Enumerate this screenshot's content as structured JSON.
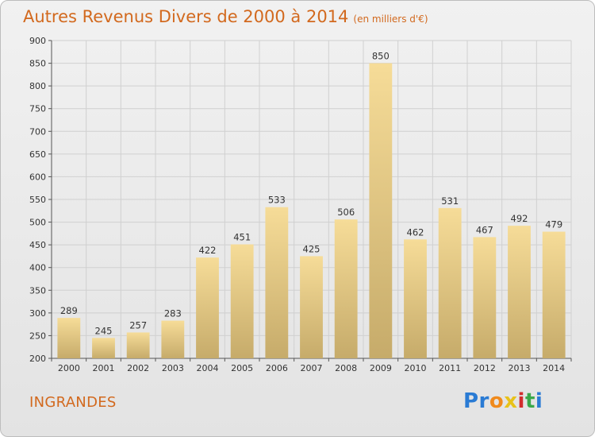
{
  "chart_data": {
    "type": "bar",
    "title": "Autres Revenus Divers de 2000 à 2014",
    "subtitle": "(en milliers d'€)",
    "categories": [
      "2000",
      "2001",
      "2002",
      "2003",
      "2004",
      "2005",
      "2006",
      "2007",
      "2008",
      "2009",
      "2010",
      "2011",
      "2012",
      "2013",
      "2014"
    ],
    "values": [
      289,
      245,
      257,
      283,
      422,
      451,
      533,
      425,
      506,
      850,
      462,
      531,
      467,
      492,
      479
    ],
    "ylim": [
      200,
      900
    ],
    "yticks": [
      200,
      250,
      300,
      350,
      400,
      450,
      500,
      550,
      600,
      650,
      700,
      750,
      800,
      850,
      900
    ],
    "grid": true,
    "xlabel": "",
    "ylabel": ""
  },
  "footer": {
    "place": "INGRANDES",
    "logo": [
      "Pr",
      "o",
      "x",
      "i",
      "t",
      "i"
    ]
  },
  "colors": {
    "bar_top": "#f6dc98",
    "bar_bottom": "#c6ab6a",
    "title": "#d2691e",
    "grid": "#d0d0d0"
  }
}
